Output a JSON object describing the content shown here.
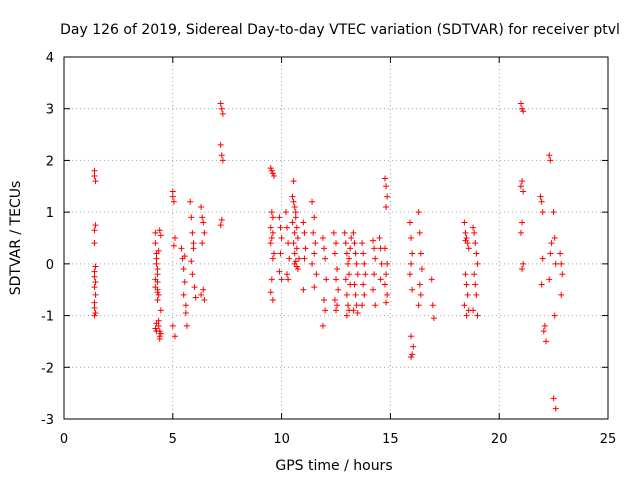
{
  "chart_data": {
    "type": "scatter",
    "title": "Day 126 of 2019, Sidereal Day-to-day VTEC variation (SDTVAR) for receiver ptvl",
    "xlabel": "GPS time / hours",
    "ylabel": "SDTVAR / TECUs",
    "xlim": [
      0,
      25
    ],
    "ylim": [
      -3,
      4
    ],
    "xticks": [
      "0",
      "5",
      "10",
      "15",
      "20",
      "25"
    ],
    "yticks": [
      "-3",
      "-2",
      "-1",
      "0",
      "1",
      "2",
      "3",
      "4"
    ],
    "grid": true,
    "marker": "plus",
    "color": "#ff0000",
    "series": [
      {
        "name": "SDTVAR",
        "x": [
          1.4,
          1.4,
          1.45,
          1.45,
          1.4,
          1.4,
          1.45,
          1.4,
          1.4,
          1.45,
          1.4,
          1.45,
          1.4,
          1.4,
          1.45,
          1.4,
          4.2,
          4.2,
          4.25,
          4.25,
          4.3,
          4.3,
          4.2,
          4.2,
          4.3,
          4.3,
          4.35,
          4.35,
          4.4,
          4.4,
          4.4,
          4.45,
          4.45,
          4.25,
          4.3,
          4.35,
          4.2,
          4.25,
          4.4,
          4.45,
          4.3,
          4.35,
          4.25,
          5.0,
          5.0,
          5.05,
          5.1,
          5.05,
          5.0,
          5.1,
          5.4,
          5.45,
          5.5,
          5.55,
          5.5,
          5.6,
          5.6,
          5.65,
          5.55,
          5.8,
          5.85,
          5.9,
          5.95,
          5.85,
          5.9,
          6.0,
          6.05,
          5.95,
          6.3,
          6.35,
          6.4,
          6.45,
          6.35,
          6.4,
          6.3,
          6.45,
          7.2,
          7.25,
          7.3,
          7.2,
          7.25,
          7.3,
          7.25,
          7.2,
          9.5,
          9.55,
          9.6,
          9.65,
          9.55,
          9.6,
          9.5,
          9.6,
          9.55,
          9.5,
          9.65,
          9.6,
          9.55,
          9.5,
          9.6,
          9.9,
          9.95,
          10.0,
          9.95,
          9.9,
          10.0,
          10.2,
          10.25,
          10.3,
          10.35,
          10.25,
          10.3,
          10.5,
          10.55,
          10.6,
          10.65,
          10.7,
          10.75,
          10.55,
          10.6,
          10.65,
          10.7,
          10.5,
          10.6,
          10.7,
          10.8,
          10.75,
          10.55,
          10.65,
          10.6,
          11.0,
          11.05,
          11.1,
          11.05,
          11.0,
          11.4,
          11.5,
          11.45,
          11.55,
          11.5,
          11.4,
          11.6,
          11.5,
          11.9,
          11.95,
          12.0,
          12.05,
          11.95,
          12.0,
          11.9,
          12.4,
          12.5,
          12.45,
          12.55,
          12.5,
          12.6,
          12.45,
          12.55,
          12.5,
          12.9,
          12.95,
          13.0,
          13.05,
          13.1,
          13.15,
          13.0,
          13.05,
          13.1,
          12.95,
          13.15,
          13.2,
          13.0,
          13.1,
          13.3,
          13.35,
          13.4,
          13.45,
          13.5,
          13.35,
          13.4,
          13.45,
          13.3,
          13.5,
          13.7,
          13.75,
          13.8,
          13.85,
          13.75,
          13.8,
          13.7,
          14.2,
          14.25,
          14.3,
          14.25,
          14.2,
          14.3,
          14.5,
          14.55,
          14.6,
          14.55,
          14.75,
          14.8,
          14.85,
          14.8,
          14.75,
          14.85,
          14.8,
          14.75,
          14.85,
          14.8,
          15.9,
          15.95,
          16.0,
          15.95,
          15.9,
          16.0,
          15.95,
          16.05,
          16.0,
          15.95,
          16.3,
          16.35,
          16.4,
          16.45,
          16.35,
          16.4,
          16.3,
          16.9,
          16.95,
          17.0,
          18.4,
          18.45,
          18.5,
          18.55,
          18.6,
          18.45,
          18.5,
          18.55,
          18.4,
          18.6,
          18.5,
          18.45,
          18.8,
          18.85,
          18.9,
          18.95,
          19.0,
          18.85,
          18.9,
          18.95,
          18.8,
          19.0,
          21.0,
          21.05,
          21.1,
          21.05,
          21.0,
          21.1,
          21.05,
          21.0,
          21.1,
          21.05,
          21.9,
          21.95,
          22.0,
          21.95,
          22.1,
          22.15,
          22.05,
          22.0,
          22.3,
          22.35,
          22.4,
          22.35,
          22.3,
          22.5,
          22.55,
          22.6,
          22.55,
          22.5,
          22.6,
          22.8,
          22.85,
          22.9,
          22.85
        ],
        "y": [
          1.8,
          1.7,
          1.6,
          0.75,
          0.65,
          0.4,
          -0.05,
          -0.15,
          -0.25,
          -0.35,
          -0.45,
          -0.6,
          -0.75,
          -0.85,
          -0.95,
          -1.0,
          0.6,
          0.4,
          0.2,
          0.0,
          -0.1,
          -0.2,
          -0.3,
          -0.45,
          -0.55,
          -0.7,
          -1.1,
          -1.2,
          -1.3,
          -1.4,
          -1.45,
          -1.35,
          -0.9,
          0.1,
          -0.35,
          -0.6,
          -1.25,
          -1.3,
          0.65,
          0.55,
          -0.5,
          0.25,
          -1.15,
          1.4,
          1.3,
          1.2,
          0.5,
          0.35,
          -1.2,
          -1.4,
          0.3,
          0.1,
          -0.1,
          -0.35,
          -0.6,
          -0.8,
          -0.95,
          -1.2,
          0.15,
          1.2,
          0.9,
          0.6,
          0.3,
          0.05,
          -0.2,
          -0.45,
          -0.65,
          0.4,
          1.1,
          0.9,
          0.8,
          0.6,
          0.4,
          -0.5,
          -0.6,
          -0.7,
          3.1,
          3.0,
          2.9,
          2.3,
          2.1,
          2.0,
          0.85,
          0.75,
          1.85,
          1.8,
          1.75,
          1.7,
          1.0,
          0.9,
          0.7,
          0.6,
          0.5,
          0.4,
          0.2,
          0.1,
          -0.3,
          -0.55,
          -0.7,
          0.9,
          0.7,
          0.5,
          0.2,
          -0.15,
          -0.3,
          1.0,
          0.7,
          0.4,
          0.1,
          -0.2,
          -0.3,
          1.3,
          1.2,
          1.1,
          0.9,
          0.7,
          0.5,
          0.4,
          0.2,
          0.05,
          -0.05,
          0.8,
          0.6,
          0.3,
          0.1,
          -0.1,
          1.6,
          1.0,
          0.0,
          0.8,
          0.6,
          0.3,
          0.1,
          -0.5,
          1.2,
          0.9,
          0.6,
          0.4,
          0.2,
          0.0,
          -0.2,
          -0.45,
          0.5,
          0.3,
          0.1,
          -0.3,
          -0.7,
          -0.9,
          -1.2,
          0.6,
          0.4,
          0.2,
          -0.1,
          -0.3,
          -0.5,
          -0.7,
          -0.8,
          -0.9,
          0.6,
          0.4,
          0.2,
          0.0,
          -0.2,
          -0.4,
          -0.6,
          -0.8,
          -0.9,
          -0.3,
          0.3,
          0.5,
          -1.0,
          0.1,
          0.6,
          0.4,
          0.2,
          0.0,
          -0.2,
          -0.4,
          -0.6,
          -0.8,
          -0.9,
          -0.95,
          0.4,
          0.2,
          0.0,
          -0.2,
          -0.4,
          -0.6,
          -0.8,
          0.45,
          0.3,
          0.1,
          -0.2,
          -0.5,
          -0.8,
          0.5,
          0.3,
          0.0,
          -0.3,
          1.65,
          1.5,
          1.3,
          1.1,
          0.3,
          0.0,
          -0.2,
          -0.4,
          -0.6,
          -0.75,
          0.8,
          0.5,
          0.2,
          0.0,
          -0.2,
          -0.5,
          -1.4,
          -1.6,
          -1.75,
          -1.8,
          1.0,
          0.6,
          0.2,
          -0.1,
          -0.4,
          -0.6,
          -0.8,
          -0.3,
          -0.8,
          -1.05,
          0.8,
          0.6,
          0.5,
          0.4,
          0.3,
          -0.2,
          -0.4,
          -0.6,
          -0.8,
          -0.9,
          -1.0,
          0.45,
          0.7,
          0.6,
          0.4,
          0.2,
          0.0,
          -0.2,
          -0.4,
          -0.6,
          -0.9,
          -1.0,
          3.1,
          3.0,
          2.95,
          1.6,
          1.5,
          1.4,
          0.8,
          0.6,
          0.0,
          -0.1,
          1.3,
          1.2,
          0.1,
          -0.4,
          -1.2,
          -1.5,
          -1.3,
          1.0,
          2.1,
          2.0,
          0.4,
          0.2,
          -0.3,
          1.0,
          0.5,
          0.0,
          -1.0,
          -2.6,
          -2.8,
          0.2,
          0.0,
          -0.2,
          -0.6
        ]
      }
    ]
  }
}
